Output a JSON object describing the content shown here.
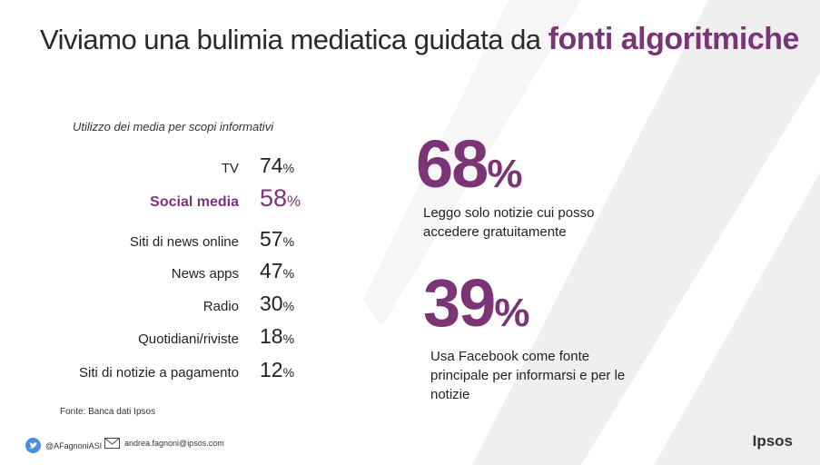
{
  "title": {
    "main": "Viviamo una bulimia mediatica guidata da ",
    "accent": "fonti algoritmiche"
  },
  "subtitle": "Utilizzo dei media per scopi informativi",
  "media_usage": [
    {
      "label": "TV",
      "value": "74",
      "unit": "%"
    },
    {
      "label": "Social media",
      "value": "58",
      "unit": "%",
      "highlight": true
    },
    {
      "label": "Siti di news online",
      "value": "57",
      "unit": "%"
    },
    {
      "label": "News apps",
      "value": "47",
      "unit": "%"
    },
    {
      "label": "Radio",
      "value": "30",
      "unit": "%"
    },
    {
      "label": "Quotidiani/riviste",
      "value": "18",
      "unit": "%"
    },
    {
      "label": "Siti di notizie a pagamento",
      "value": "12",
      "unit": "%"
    }
  ],
  "stats": [
    {
      "value": "68",
      "unit": "%",
      "description": "Leggo solo notizie cui posso accedere gratuitamente"
    },
    {
      "value": "39",
      "unit": "%",
      "description": "Usa Facebook come fonte principale per informarsi e per le notizie"
    }
  ],
  "source": "Fonte: Banca dati Ipsos",
  "footer": {
    "twitter_handle": "@AFagnoniASI",
    "email": "andrea.fagnoni@ipsos.com",
    "brand": "Ipsos"
  },
  "colors": {
    "accent": "#7b3577",
    "stripe": "#ececec",
    "twitter": "#4a90d9"
  },
  "icons": {
    "twitter": "twitter-bird-icon",
    "email": "envelope-icon"
  }
}
